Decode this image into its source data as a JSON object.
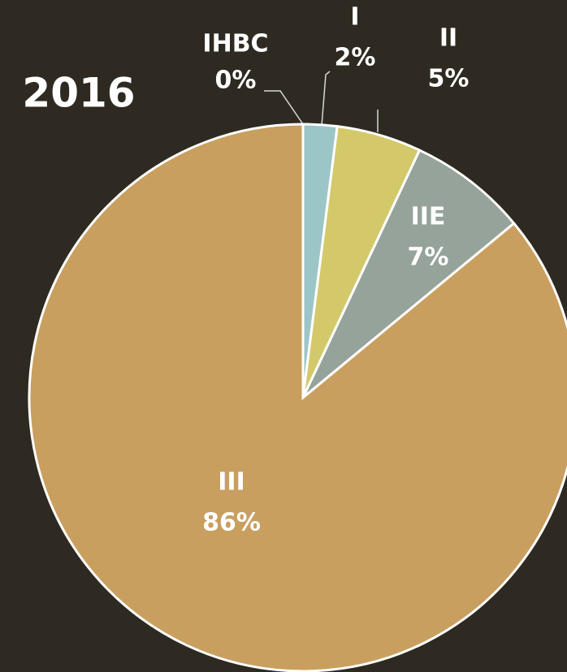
{
  "chart_data": {
    "type": "pie",
    "title": "2016",
    "categories": [
      "IHBC",
      "I",
      "II",
      "IIE",
      "III"
    ],
    "values": [
      0,
      2,
      5,
      7,
      86
    ],
    "value_labels": [
      "0%",
      "2%",
      "5%",
      "7%",
      "86%"
    ],
    "colors": [
      "#9cc5c7",
      "#9cc5c7",
      "#d3c96a",
      "#95a39a",
      "#c99f5f"
    ]
  }
}
